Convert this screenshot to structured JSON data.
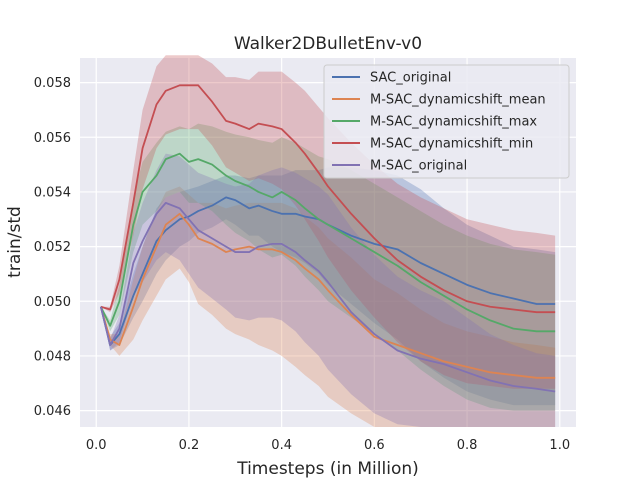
{
  "chart_data": {
    "type": "line",
    "title": "Walker2DBulletEnv-v0",
    "xlabel": "Timesteps (in Million)",
    "ylabel": "train/std",
    "xlim": [
      -0.035,
      1.035
    ],
    "ylim": [
      0.0454,
      0.0589
    ],
    "xticks": [
      0.0,
      0.2,
      0.4,
      0.6,
      0.8,
      1.0
    ],
    "xtick_labels": [
      "0.0",
      "0.2",
      "0.4",
      "0.6",
      "0.8",
      "1.0"
    ],
    "yticks": [
      0.046,
      0.048,
      0.05,
      0.052,
      0.054,
      0.056,
      0.058
    ],
    "ytick_labels": [
      "0.046",
      "0.048",
      "0.050",
      "0.052",
      "0.054",
      "0.056",
      "0.058"
    ],
    "grid": true,
    "legend_position": "top-right",
    "x": [
      0.01,
      0.03,
      0.05,
      0.08,
      0.1,
      0.13,
      0.15,
      0.18,
      0.2,
      0.22,
      0.25,
      0.28,
      0.3,
      0.33,
      0.35,
      0.38,
      0.4,
      0.43,
      0.45,
      0.48,
      0.5,
      0.55,
      0.6,
      0.65,
      0.7,
      0.75,
      0.8,
      0.85,
      0.9,
      0.95,
      0.99
    ],
    "series": [
      {
        "name": "SAC_original",
        "color": "#4c72b0",
        "values": [
          0.0498,
          0.0484,
          0.0488,
          0.0502,
          0.051,
          0.0522,
          0.0526,
          0.053,
          0.0531,
          0.0533,
          0.0535,
          0.0538,
          0.0537,
          0.0534,
          0.0535,
          0.0533,
          0.0532,
          0.0532,
          0.0531,
          0.053,
          0.0528,
          0.0524,
          0.0521,
          0.0519,
          0.0514,
          0.051,
          0.0506,
          0.0503,
          0.0501,
          0.0499,
          0.0499
        ],
        "lower": [
          0.0498,
          0.0482,
          0.0484,
          0.0494,
          0.05,
          0.051,
          0.0515,
          0.052,
          0.0522,
          0.0525,
          0.0527,
          0.053,
          0.0528,
          0.0524,
          0.0524,
          0.052,
          0.0518,
          0.0516,
          0.0514,
          0.051,
          0.0506,
          0.0499,
          0.0492,
          0.0486,
          0.0478,
          0.0472,
          0.0467,
          0.0464,
          0.0462,
          0.0462,
          0.0462
        ],
        "upper": [
          0.0498,
          0.0487,
          0.0492,
          0.051,
          0.052,
          0.0534,
          0.0538,
          0.054,
          0.0541,
          0.0542,
          0.0544,
          0.0546,
          0.0546,
          0.0545,
          0.0546,
          0.0546,
          0.0546,
          0.0548,
          0.0548,
          0.0548,
          0.0549,
          0.0549,
          0.0548,
          0.0546,
          0.0541,
          0.0534,
          0.0528,
          0.0524,
          0.052,
          0.0519,
          0.0518
        ]
      },
      {
        "name": "M-SAC_dynamicshift_mean",
        "color": "#dd8452",
        "values": [
          0.0498,
          0.0486,
          0.0484,
          0.0498,
          0.0508,
          0.052,
          0.0528,
          0.0532,
          0.0528,
          0.0523,
          0.0521,
          0.0518,
          0.0519,
          0.052,
          0.0519,
          0.0519,
          0.0518,
          0.0515,
          0.0512,
          0.0508,
          0.0504,
          0.0495,
          0.0487,
          0.0484,
          0.0481,
          0.0478,
          0.0476,
          0.0474,
          0.0473,
          0.0472,
          0.0472
        ],
        "lower": [
          0.0498,
          0.0484,
          0.048,
          0.0486,
          0.0493,
          0.0502,
          0.0508,
          0.0512,
          0.0507,
          0.0499,
          0.0495,
          0.049,
          0.0488,
          0.0486,
          0.0484,
          0.0482,
          0.048,
          0.0476,
          0.0473,
          0.0469,
          0.0465,
          0.0459,
          0.0454,
          0.0454,
          0.0454,
          0.0454,
          0.0454,
          0.0454,
          0.0454,
          0.0454,
          0.0454
        ],
        "upper": [
          0.0498,
          0.0488,
          0.0488,
          0.0508,
          0.052,
          0.0533,
          0.054,
          0.0542,
          0.0539,
          0.0536,
          0.0536,
          0.0534,
          0.0535,
          0.0536,
          0.0536,
          0.0536,
          0.0536,
          0.0534,
          0.0531,
          0.0527,
          0.0523,
          0.0516,
          0.0508,
          0.0503,
          0.0497,
          0.0492,
          0.0489,
          0.0487,
          0.0485,
          0.0484,
          0.0483
        ]
      },
      {
        "name": "M-SAC_dynamicshift_max",
        "color": "#55a868",
        "values": [
          0.0498,
          0.0491,
          0.05,
          0.0528,
          0.054,
          0.0546,
          0.0552,
          0.0554,
          0.0551,
          0.0552,
          0.055,
          0.0546,
          0.0544,
          0.0542,
          0.054,
          0.0538,
          0.054,
          0.0537,
          0.0534,
          0.053,
          0.0528,
          0.0523,
          0.0518,
          0.0513,
          0.0507,
          0.0502,
          0.0497,
          0.0493,
          0.049,
          0.0489,
          0.0489
        ],
        "lower": [
          0.0498,
          0.0489,
          0.0495,
          0.0518,
          0.0528,
          0.0533,
          0.0538,
          0.054,
          0.0536,
          0.0536,
          0.0533,
          0.0528,
          0.0525,
          0.0522,
          0.0519,
          0.0516,
          0.0517,
          0.0513,
          0.0509,
          0.0504,
          0.05,
          0.0494,
          0.0488,
          0.0482,
          0.0475,
          0.0469,
          0.0464,
          0.0461,
          0.046,
          0.046,
          0.046
        ],
        "upper": [
          0.0498,
          0.0493,
          0.0506,
          0.0538,
          0.0551,
          0.0558,
          0.0562,
          0.0564,
          0.0563,
          0.0565,
          0.0564,
          0.0562,
          0.0561,
          0.056,
          0.0559,
          0.0558,
          0.056,
          0.0558,
          0.0556,
          0.0553,
          0.0552,
          0.0548,
          0.0543,
          0.0538,
          0.0533,
          0.0528,
          0.0524,
          0.0521,
          0.0519,
          0.0518,
          0.0517
        ]
      },
      {
        "name": "M-SAC_dynamicshift_min",
        "color": "#c44e52",
        "values": [
          0.0498,
          0.0497,
          0.0508,
          0.0536,
          0.0556,
          0.0572,
          0.0577,
          0.0579,
          0.0579,
          0.0579,
          0.0573,
          0.0566,
          0.0565,
          0.0563,
          0.0565,
          0.0564,
          0.0563,
          0.0558,
          0.0554,
          0.0547,
          0.0542,
          0.0532,
          0.0523,
          0.0515,
          0.0509,
          0.0504,
          0.05,
          0.0498,
          0.0497,
          0.0496,
          0.0496
        ],
        "lower": [
          0.0498,
          0.0496,
          0.0503,
          0.0524,
          0.0541,
          0.0556,
          0.0561,
          0.0563,
          0.0563,
          0.0563,
          0.0557,
          0.0549,
          0.0547,
          0.0544,
          0.0545,
          0.0543,
          0.0541,
          0.0535,
          0.053,
          0.0522,
          0.0516,
          0.0504,
          0.0494,
          0.0485,
          0.0478,
          0.0473,
          0.047,
          0.0469,
          0.0468,
          0.0468,
          0.0468
        ],
        "upper": [
          0.0498,
          0.0498,
          0.0513,
          0.0548,
          0.057,
          0.0586,
          0.059,
          0.059,
          0.059,
          0.059,
          0.0587,
          0.0582,
          0.0582,
          0.0581,
          0.0584,
          0.0584,
          0.0584,
          0.058,
          0.0577,
          0.0571,
          0.0567,
          0.0558,
          0.055,
          0.0543,
          0.0538,
          0.0534,
          0.053,
          0.0528,
          0.0526,
          0.0525,
          0.0524
        ]
      },
      {
        "name": "M-SAC_original",
        "color": "#8172b3",
        "values": [
          0.0498,
          0.0484,
          0.049,
          0.0514,
          0.0522,
          0.0532,
          0.0536,
          0.0534,
          0.053,
          0.0526,
          0.0523,
          0.052,
          0.0518,
          0.0518,
          0.052,
          0.0521,
          0.0521,
          0.0518,
          0.0515,
          0.0511,
          0.0507,
          0.0496,
          0.0488,
          0.0482,
          0.0479,
          0.0477,
          0.0474,
          0.0471,
          0.0469,
          0.0468,
          0.0467
        ],
        "lower": [
          0.0498,
          0.0482,
          0.0485,
          0.0502,
          0.0507,
          0.0515,
          0.0518,
          0.0515,
          0.051,
          0.0505,
          0.0501,
          0.0497,
          0.0494,
          0.0493,
          0.0494,
          0.0494,
          0.0493,
          0.0489,
          0.0485,
          0.048,
          0.0475,
          0.0466,
          0.0459,
          0.0455,
          0.0454,
          0.0454,
          0.0454,
          0.0454,
          0.0454,
          0.0454,
          0.0454
        ],
        "upper": [
          0.0498,
          0.0486,
          0.0495,
          0.0525,
          0.0536,
          0.0548,
          0.0554,
          0.0553,
          0.055,
          0.0547,
          0.0545,
          0.0543,
          0.0542,
          0.0543,
          0.0546,
          0.0548,
          0.0549,
          0.0547,
          0.0545,
          0.0542,
          0.0539,
          0.0527,
          0.0517,
          0.0509,
          0.0504,
          0.05,
          0.0494,
          0.0488,
          0.0484,
          0.0481,
          0.048
        ]
      }
    ]
  }
}
